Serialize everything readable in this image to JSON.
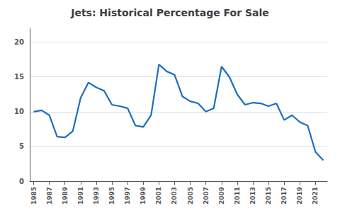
{
  "chart_data": {
    "type": "line",
    "title": "Jets: Historical Percentage For Sale",
    "x": [
      1985,
      1986,
      1987,
      1988,
      1989,
      1990,
      1991,
      1992,
      1993,
      1994,
      1995,
      1996,
      1997,
      1998,
      1999,
      2000,
      2001,
      2002,
      2003,
      2004,
      2005,
      2006,
      2007,
      2008,
      2009,
      2010,
      2011,
      2012,
      2013,
      2014,
      2015,
      2016,
      2017,
      2018,
      2019,
      2020,
      2021,
      2022
    ],
    "values": [
      10.0,
      10.2,
      9.5,
      6.4,
      6.3,
      7.2,
      12.0,
      14.2,
      13.5,
      13.0,
      11.0,
      10.8,
      10.5,
      8.0,
      7.8,
      9.5,
      16.8,
      15.8,
      15.3,
      12.2,
      11.5,
      11.2,
      10.0,
      10.5,
      16.5,
      15.0,
      12.5,
      11.0,
      11.3,
      11.2,
      10.8,
      11.2,
      8.8,
      9.5,
      8.5,
      8.0,
      4.2,
      3.0
    ],
    "color": "#1a6fbd",
    "xlim": [
      1984.5,
      2022.5
    ],
    "xticks": [
      1985,
      1987,
      1989,
      1991,
      1993,
      1995,
      1997,
      1999,
      2001,
      2003,
      2005,
      2007,
      2009,
      2011,
      2013,
      2015,
      2017,
      2019,
      2021
    ],
    "ylim": [
      0,
      22
    ],
    "yticks": [
      0,
      5,
      10,
      15,
      20
    ],
    "grid": true
  }
}
